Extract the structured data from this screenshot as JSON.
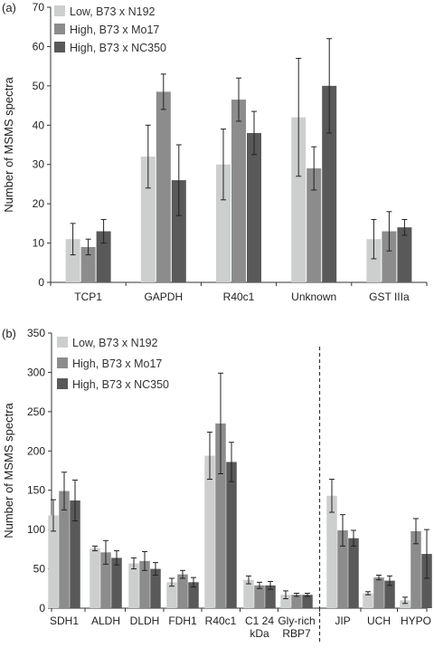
{
  "colors": {
    "low": "#cdcfcf",
    "high_mo17": "#8c8c8c",
    "high_nc350": "#595959"
  },
  "chart_data": [
    {
      "panel": "(a)",
      "type": "bar",
      "ylabel": "Number of MSMS spectra",
      "ylim": [
        0,
        70
      ],
      "yticks": [
        0,
        10,
        20,
        30,
        40,
        50,
        60,
        70
      ],
      "legend_position": "top-left",
      "categories": [
        "TCP1",
        "GAPDH",
        "R40c1",
        "Unknown",
        "GST IIIa"
      ],
      "series": [
        {
          "name": "Low, B73 x N192",
          "values": [
            11,
            32,
            30,
            42,
            11
          ],
          "errors": [
            4,
            8,
            9,
            15,
            5
          ]
        },
        {
          "name": "High, B73 x Mo17",
          "values": [
            9,
            48.5,
            46.5,
            29,
            13
          ],
          "errors": [
            2,
            4.5,
            5.5,
            5.5,
            5
          ]
        },
        {
          "name": "High, B73 x NC350",
          "values": [
            13,
            26,
            38,
            50,
            14
          ],
          "errors": [
            3,
            9,
            5.5,
            12,
            2
          ]
        }
      ]
    },
    {
      "panel": "(b)",
      "type": "bar",
      "ylabel": "Number of MSMS spectra",
      "ylim": [
        0,
        350
      ],
      "yticks": [
        0,
        50,
        100,
        150,
        200,
        250,
        300,
        350
      ],
      "legend_position": "top-left",
      "categories": [
        "SDH1",
        "ALDH",
        "DLDH",
        "FDH1",
        "R40c1",
        "C1 24 kDa",
        "Gly-rich RBP7",
        "JIP",
        "UCH",
        "HYPO"
      ],
      "divider_after_index": 6,
      "series": [
        {
          "name": "Low, B73 x N192",
          "values": [
            118,
            76,
            57,
            33,
            194,
            36,
            17,
            143,
            19,
            10
          ],
          "errors": [
            20,
            3,
            7,
            5,
            30,
            5,
            5,
            21,
            2,
            4
          ]
        },
        {
          "name": "High, B73 x Mo17",
          "values": [
            149,
            71,
            60,
            43,
            235,
            29,
            17,
            99,
            39,
            98
          ],
          "errors": [
            24,
            15,
            12,
            5,
            64,
            4,
            2,
            20,
            3,
            16
          ]
        },
        {
          "name": "High, B73 x NC350",
          "values": [
            137,
            64,
            50,
            33,
            186,
            29,
            17,
            89,
            35,
            69
          ],
          "errors": [
            26,
            9,
            8,
            6,
            25,
            5,
            2,
            10,
            6,
            31
          ]
        }
      ]
    }
  ]
}
